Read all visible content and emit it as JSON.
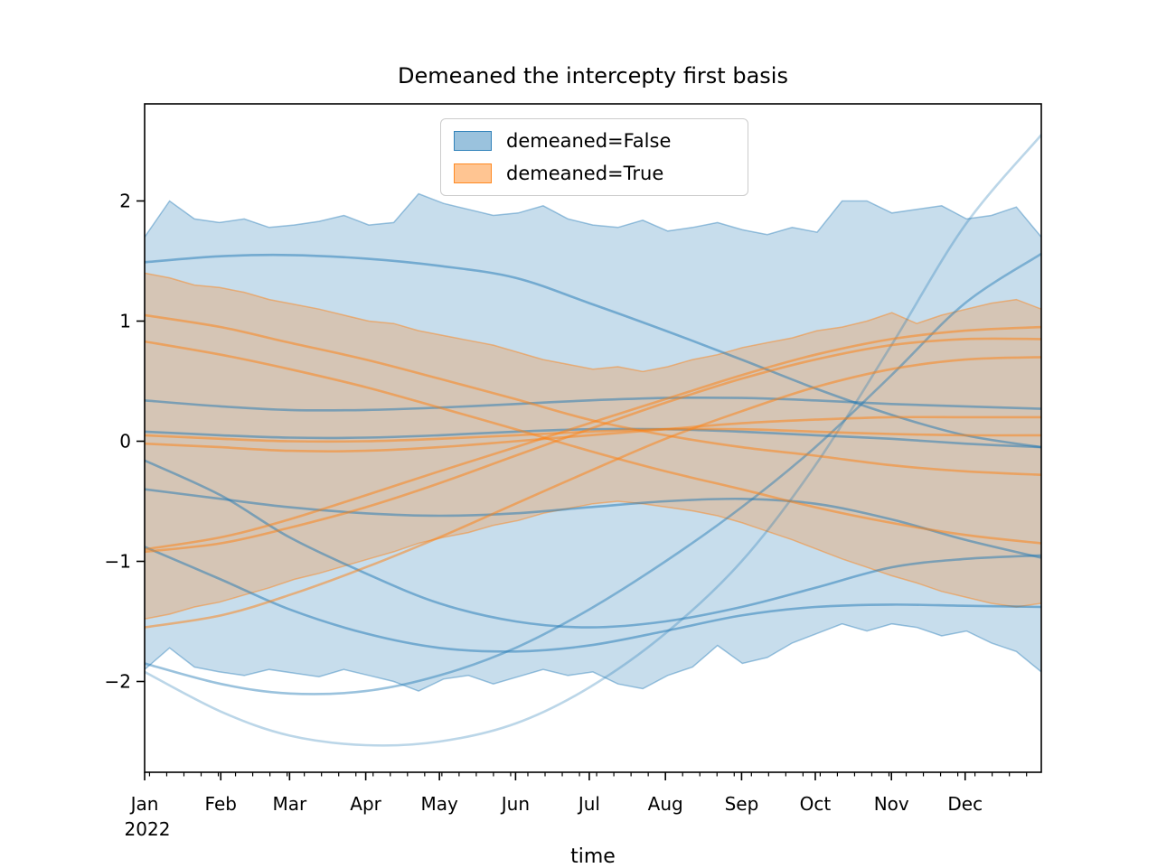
{
  "title": "Demeaned the intercepty first basis",
  "xlabel": "time",
  "legend": {
    "entries": [
      {
        "label": "demeaned=False",
        "color": "#1f77b4"
      },
      {
        "label": "demeaned=True",
        "color": "#ff7f0e"
      }
    ]
  },
  "chart_data": {
    "type": "line",
    "title": "Demeaned the intercepty first basis",
    "xlabel": "time",
    "ylabel": "",
    "x_tick_labels": [
      "Jan",
      "Feb",
      "Mar",
      "Apr",
      "May",
      "Jun",
      "Jul",
      "Aug",
      "Sep",
      "Oct",
      "Nov",
      "Dec"
    ],
    "x_year_label": "2022",
    "x_month_days": [
      0,
      31,
      59,
      90,
      120,
      151,
      181,
      212,
      243,
      273,
      304,
      334
    ],
    "x_range_days": [
      0,
      365
    ],
    "y_ticks": [
      -2,
      -1,
      0,
      1,
      2
    ],
    "y_tick_labels": [
      "−2",
      "−1",
      "0",
      "1",
      "2"
    ],
    "ylim": [
      -2.76,
      2.81
    ],
    "grid": false,
    "legend_position": "upper center",
    "groups": [
      {
        "name": "demeaned=False",
        "color": "#1f77b4"
      },
      {
        "name": "demeaned=True",
        "color": "#ff7f0e"
      }
    ],
    "sample_days": [
      0,
      31,
      59,
      90,
      120,
      151,
      181,
      212,
      243,
      273,
      304,
      334,
      365
    ],
    "bands": [
      {
        "name": "demeaned=False",
        "color": "#1f77b4",
        "fill_alpha": 0.25,
        "edge_alpha": 0.42,
        "upper": [
          1.7,
          2.0,
          1.85,
          1.82,
          1.85,
          1.78,
          1.8,
          1.83,
          1.88,
          1.8,
          1.82,
          2.06,
          1.98,
          1.93,
          1.88,
          1.9,
          1.96,
          1.85,
          1.8,
          1.78,
          1.84,
          1.75,
          1.78,
          1.82,
          1.76,
          1.72,
          1.78,
          1.74,
          2.0,
          2.0,
          1.9,
          1.93,
          1.96,
          1.85,
          1.88,
          1.95,
          1.7
        ],
        "lower": [
          -1.9,
          -1.72,
          -1.88,
          -1.92,
          -1.95,
          -1.9,
          -1.93,
          -1.96,
          -1.9,
          -1.95,
          -2.0,
          -2.08,
          -1.98,
          -1.95,
          -2.02,
          -1.96,
          -1.9,
          -1.95,
          -1.92,
          -2.02,
          -2.06,
          -1.95,
          -1.88,
          -1.7,
          -1.85,
          -1.8,
          -1.68,
          -1.6,
          -1.52,
          -1.58,
          -1.52,
          -1.55,
          -1.62,
          -1.58,
          -1.68,
          -1.75,
          -1.92
        ]
      },
      {
        "name": "demeaned=True",
        "color": "#ff7f0e",
        "fill_alpha": 0.25,
        "edge_alpha": 0.45,
        "upper": [
          1.4,
          1.36,
          1.3,
          1.28,
          1.24,
          1.18,
          1.14,
          1.1,
          1.05,
          1.0,
          0.98,
          0.92,
          0.88,
          0.84,
          0.8,
          0.74,
          0.68,
          0.64,
          0.6,
          0.62,
          0.58,
          0.62,
          0.68,
          0.72,
          0.78,
          0.82,
          0.86,
          0.92,
          0.95,
          1.0,
          1.07,
          0.98,
          1.05,
          1.1,
          1.15,
          1.18,
          1.1
        ],
        "lower": [
          -1.48,
          -1.44,
          -1.38,
          -1.34,
          -1.28,
          -1.22,
          -1.15,
          -1.1,
          -1.04,
          -0.98,
          -0.92,
          -0.85,
          -0.8,
          -0.76,
          -0.7,
          -0.66,
          -0.6,
          -0.56,
          -0.52,
          -0.5,
          -0.52,
          -0.55,
          -0.58,
          -0.62,
          -0.68,
          -0.75,
          -0.82,
          -0.9,
          -0.98,
          -1.05,
          -1.12,
          -1.18,
          -1.25,
          -1.3,
          -1.35,
          -1.38,
          -1.35
        ]
      }
    ],
    "series": [
      {
        "group": "demeaned=False",
        "color": "#1f77b4",
        "alpha": 0.5,
        "values": [
          1.49,
          1.54,
          1.55,
          1.52,
          1.46,
          1.36,
          1.15,
          0.92,
          0.68,
          0.44,
          0.22,
          0.05,
          -0.05
        ]
      },
      {
        "group": "demeaned=False",
        "color": "#1f77b4",
        "alpha": 0.5,
        "values": [
          0.34,
          0.29,
          0.26,
          0.26,
          0.28,
          0.31,
          0.34,
          0.36,
          0.36,
          0.34,
          0.31,
          0.29,
          0.27
        ]
      },
      {
        "group": "demeaned=False",
        "color": "#1f77b4",
        "alpha": 0.5,
        "values": [
          0.08,
          0.05,
          0.03,
          0.03,
          0.05,
          0.08,
          0.1,
          0.1,
          0.08,
          0.05,
          0.02,
          -0.02,
          -0.05
        ]
      },
      {
        "group": "demeaned=False",
        "color": "#1f77b4",
        "alpha": 0.5,
        "values": [
          -0.16,
          -0.45,
          -0.8,
          -1.1,
          -1.35,
          -1.5,
          -1.55,
          -1.5,
          -1.38,
          -1.22,
          -1.05,
          -0.98,
          -0.95
        ]
      },
      {
        "group": "demeaned=False",
        "color": "#1f77b4",
        "alpha": 0.5,
        "values": [
          -0.4,
          -0.48,
          -0.55,
          -0.6,
          -0.62,
          -0.6,
          -0.55,
          -0.5,
          -0.48,
          -0.52,
          -0.65,
          -0.82,
          -0.97
        ]
      },
      {
        "group": "demeaned=False",
        "color": "#1f77b4",
        "alpha": 0.5,
        "values": [
          -0.88,
          -1.15,
          -1.4,
          -1.6,
          -1.72,
          -1.75,
          -1.7,
          -1.58,
          -1.45,
          -1.38,
          -1.36,
          -1.37,
          -1.38
        ]
      },
      {
        "group": "demeaned=False",
        "color": "#1f77b4",
        "alpha": 0.45,
        "values": [
          -1.85,
          -2.02,
          -2.1,
          -2.08,
          -1.95,
          -1.72,
          -1.4,
          -1.0,
          -0.55,
          -0.05,
          0.55,
          1.15,
          1.56
        ]
      },
      {
        "group": "demeaned=False",
        "color": "#1f77b4",
        "alpha": 0.3,
        "values": [
          -1.92,
          -2.25,
          -2.45,
          -2.53,
          -2.5,
          -2.35,
          -2.05,
          -1.6,
          -1.0,
          -0.2,
          0.8,
          1.8,
          2.55
        ]
      },
      {
        "group": "demeaned=True",
        "color": "#ff7f0e",
        "alpha": 0.5,
        "values": [
          1.05,
          0.95,
          0.82,
          0.68,
          0.52,
          0.35,
          0.18,
          0.05,
          -0.05,
          -0.12,
          -0.2,
          -0.25,
          -0.28
        ]
      },
      {
        "group": "demeaned=True",
        "color": "#ff7f0e",
        "alpha": 0.5,
        "values": [
          0.83,
          0.72,
          0.6,
          0.45,
          0.28,
          0.1,
          -0.08,
          -0.25,
          -0.4,
          -0.55,
          -0.68,
          -0.78,
          -0.85
        ]
      },
      {
        "group": "demeaned=True",
        "color": "#ff7f0e",
        "alpha": 0.5,
        "values": [
          0.05,
          0.02,
          0.0,
          0.0,
          0.02,
          0.05,
          0.08,
          0.1,
          0.1,
          0.08,
          0.06,
          0.05,
          0.05
        ]
      },
      {
        "group": "demeaned=True",
        "color": "#ff7f0e",
        "alpha": 0.5,
        "values": [
          -0.02,
          -0.05,
          -0.08,
          -0.08,
          -0.05,
          0.0,
          0.05,
          0.1,
          0.15,
          0.18,
          0.2,
          0.2,
          0.2
        ]
      },
      {
        "group": "demeaned=True",
        "color": "#ff7f0e",
        "alpha": 0.5,
        "values": [
          -0.9,
          -0.8,
          -0.65,
          -0.45,
          -0.25,
          -0.05,
          0.15,
          0.35,
          0.55,
          0.72,
          0.85,
          0.92,
          0.95
        ]
      },
      {
        "group": "demeaned=True",
        "color": "#ff7f0e",
        "alpha": 0.5,
        "values": [
          -0.92,
          -0.85,
          -0.72,
          -0.55,
          -0.35,
          -0.12,
          0.1,
          0.32,
          0.52,
          0.68,
          0.8,
          0.85,
          0.85
        ]
      },
      {
        "group": "demeaned=True",
        "color": "#ff7f0e",
        "alpha": 0.5,
        "values": [
          -1.55,
          -1.45,
          -1.28,
          -1.05,
          -0.8,
          -0.52,
          -0.25,
          0.02,
          0.25,
          0.45,
          0.6,
          0.68,
          0.7
        ]
      }
    ]
  }
}
